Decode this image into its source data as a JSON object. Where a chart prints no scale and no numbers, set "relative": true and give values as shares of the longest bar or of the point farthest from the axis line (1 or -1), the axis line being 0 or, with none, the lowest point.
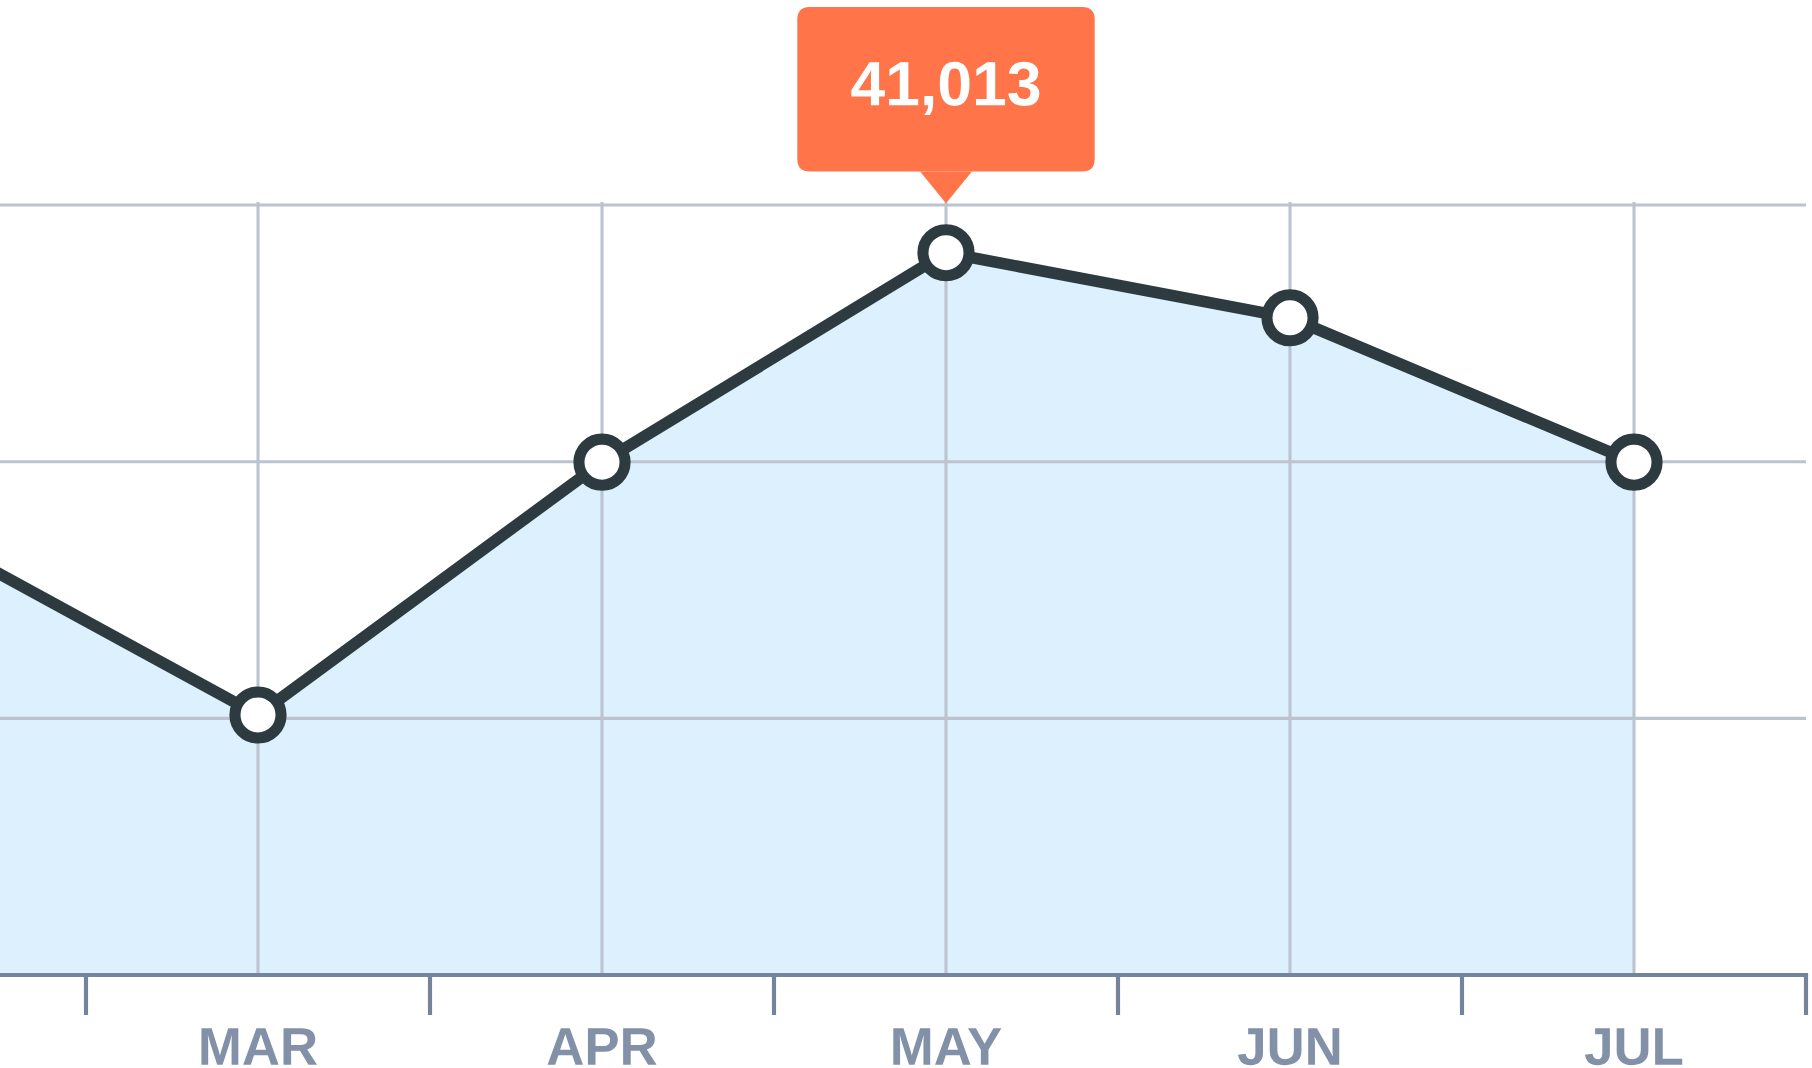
{
  "chart_data": {
    "type": "area",
    "relative": true,
    "categories": [
      null,
      "MAR",
      "APR",
      "MAY",
      "JUN",
      "JUL"
    ],
    "series": [
      {
        "color": "#dcf1fd",
        "values": [
          0.62,
          0.36,
          0.71,
          1,
          0.91,
          0.71
        ]
      }
    ],
    "annotations": [
      {
        "text": "41,013",
        "x": "MAY",
        "y": 1
      }
    ],
    "marker": "circle",
    "line_style": "solid",
    "grid": true,
    "tick_labels": "x"
  }
}
